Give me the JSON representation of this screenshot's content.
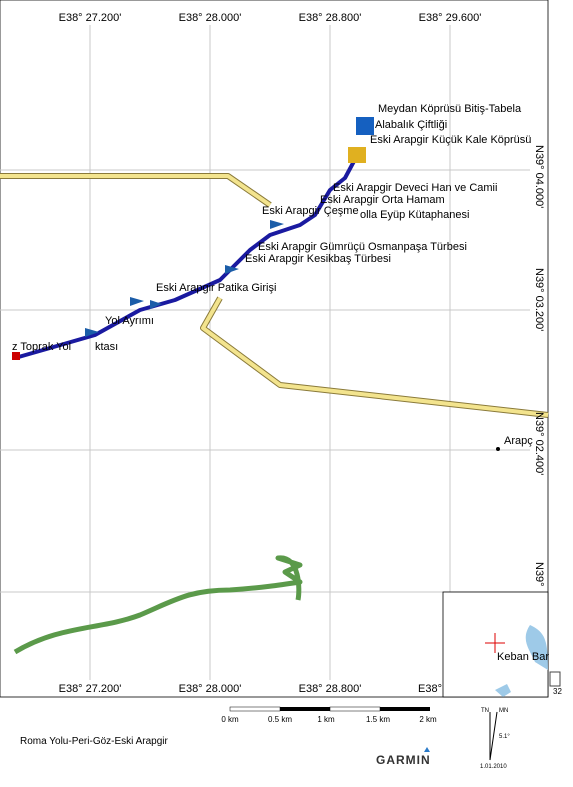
{
  "grid_labels": {
    "top": [
      "E38° 27.200'",
      "E38° 28.000'",
      "E38° 28.800'",
      "E38° 29.600'"
    ],
    "bottom": [
      "E38° 27.200'",
      "E38° 28.000'",
      "E38° 28.800'",
      "E38°"
    ],
    "right": [
      "N39° 04.000'",
      "N39° 03.200'",
      "N39° 02.400'",
      "N39°"
    ]
  },
  "waypoints": [
    "Meydan Köprüsü Bitiş-Tabela",
    "Alabalık Çiftliği",
    "Eski Arapgir Küçük Kale Köprüsü",
    "Eski Arapgir Deveci Han ve Camii",
    "Eski Arapgir Orta Hamam",
    "Eski Arapgir Çeşme",
    "olla Eyüp Kütaphanesi",
    "Eski Arapgir Gümrüçü Osmanpaşa Türbesi",
    "Eski Arapgir Kesikbaş Türbesi",
    "Eski Arapgir Patika Girişi",
    "Yol Ayrımı",
    "z Toprak Yol",
    "ktası",
    "Arapç"
  ],
  "inset": {
    "label": "Keban Bar",
    "page_number": "32"
  },
  "scale": {
    "labels": [
      "0 km",
      "0.5 km",
      "1 km",
      "1.5 km",
      "2 km"
    ]
  },
  "compass": {
    "true_north": "TN",
    "magnetic_north": "MN",
    "declination": "5.1°",
    "date": "1.01.2010"
  },
  "footer": {
    "title": "Roma Yolu-Peri-Göz-Eski Arapgir",
    "brand": "GARMIN"
  }
}
